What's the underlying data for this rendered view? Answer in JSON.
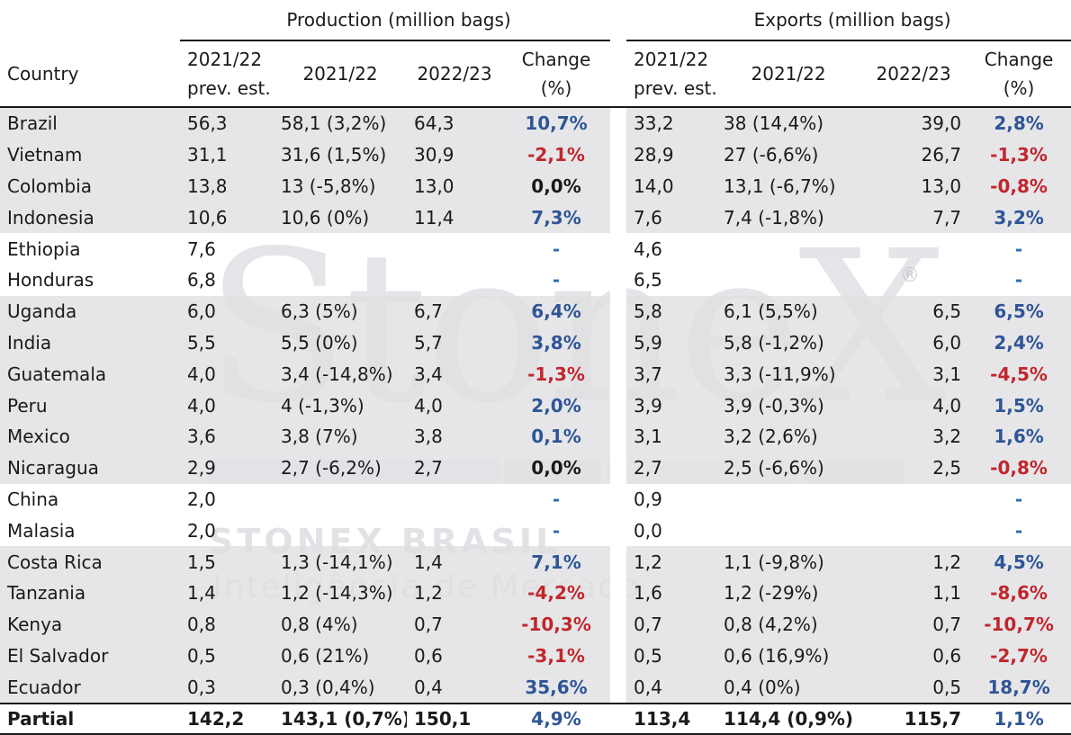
{
  "groups": {
    "production": "Production (million bags)",
    "exports": "Exports (million bags)"
  },
  "headers": {
    "country": "Country",
    "prev_line1": "2021/22",
    "prev_line2": "prev. est.",
    "y2122": "2021/22",
    "y2223": "2022/23",
    "change_line1": "Change",
    "change_line2": "(%)"
  },
  "watermark": {
    "logo": "StoneX",
    "registered": "®",
    "brand": "STONEX BRASIL",
    "tagline": "Inteligência de Mercado"
  },
  "colors": {
    "positive": "#2f5597",
    "negative": "#c0272d",
    "shade": "#e0e0e2"
  },
  "rows": [
    {
      "country": "Brazil",
      "p_prev": "56,3",
      "p_2122": "58,1 (3,2%)",
      "p_2223": "64,3",
      "p_chg": "10,7%",
      "p_sign": "pos",
      "e_prev": "33,2",
      "e_2122": "38 (14,4%)",
      "e_2223": "39,0",
      "e_chg": "2,8%",
      "e_sign": "pos",
      "shade": true
    },
    {
      "country": "Vietnam",
      "p_prev": "31,1",
      "p_2122": "31,6 (1,5%)",
      "p_2223": "30,9",
      "p_chg": "-2,1%",
      "p_sign": "neg",
      "e_prev": "28,9",
      "e_2122": "27 (-6,6%)",
      "e_2223": "26,7",
      "e_chg": "-1,3%",
      "e_sign": "neg",
      "shade": true
    },
    {
      "country": "Colombia",
      "p_prev": "13,8",
      "p_2122": "13 (-5,8%)",
      "p_2223": "13,0",
      "p_chg": "0,0%",
      "p_sign": "zero",
      "e_prev": "14,0",
      "e_2122": "13,1 (-6,7%)",
      "e_2223": "13,0",
      "e_chg": "-0,8%",
      "e_sign": "neg",
      "shade": true
    },
    {
      "country": "Indonesia",
      "p_prev": "10,6",
      "p_2122": "10,6 (0%)",
      "p_2223": "11,4",
      "p_chg": "7,3%",
      "p_sign": "pos",
      "e_prev": "7,6",
      "e_2122": "7,4 (-1,8%)",
      "e_2223": "7,7",
      "e_chg": "3,2%",
      "e_sign": "pos",
      "shade": true
    },
    {
      "country": "Ethiopia",
      "p_prev": "7,6",
      "p_2122": "",
      "p_2223": "",
      "p_chg": "-",
      "p_sign": "dash",
      "e_prev": "4,6",
      "e_2122": "",
      "e_2223": "",
      "e_chg": "-",
      "e_sign": "dash",
      "shade": false
    },
    {
      "country": "Honduras",
      "p_prev": "6,8",
      "p_2122": "",
      "p_2223": "",
      "p_chg": "-",
      "p_sign": "dash",
      "e_prev": "6,5",
      "e_2122": "",
      "e_2223": "",
      "e_chg": "-",
      "e_sign": "dash",
      "shade": false
    },
    {
      "country": "Uganda",
      "p_prev": "6,0",
      "p_2122": "6,3 (5%)",
      "p_2223": "6,7",
      "p_chg": "6,4%",
      "p_sign": "pos",
      "e_prev": "5,8",
      "e_2122": "6,1 (5,5%)",
      "e_2223": "6,5",
      "e_chg": "6,5%",
      "e_sign": "pos",
      "shade": true
    },
    {
      "country": "India",
      "p_prev": "5,5",
      "p_2122": "5,5 (0%)",
      "p_2223": "5,7",
      "p_chg": "3,8%",
      "p_sign": "pos",
      "e_prev": "5,9",
      "e_2122": "5,8 (-1,2%)",
      "e_2223": "6,0",
      "e_chg": "2,4%",
      "e_sign": "pos",
      "shade": true
    },
    {
      "country": "Guatemala",
      "p_prev": "4,0",
      "p_2122": "3,4 (-14,8%)",
      "p_2223": "3,4",
      "p_chg": "-1,3%",
      "p_sign": "neg",
      "e_prev": "3,7",
      "e_2122": "3,3 (-11,9%)",
      "e_2223": "3,1",
      "e_chg": "-4,5%",
      "e_sign": "neg",
      "shade": true
    },
    {
      "country": "Peru",
      "p_prev": "4,0",
      "p_2122": "4 (-1,3%)",
      "p_2223": "4,0",
      "p_chg": "2,0%",
      "p_sign": "pos",
      "e_prev": "3,9",
      "e_2122": "3,9 (-0,3%)",
      "e_2223": "4,0",
      "e_chg": "1,5%",
      "e_sign": "pos",
      "shade": true
    },
    {
      "country": "Mexico",
      "p_prev": "3,6",
      "p_2122": "3,8 (7%)",
      "p_2223": "3,8",
      "p_chg": "0,1%",
      "p_sign": "pos",
      "e_prev": "3,1",
      "e_2122": "3,2 (2,6%)",
      "e_2223": "3,2",
      "e_chg": "1,6%",
      "e_sign": "pos",
      "shade": true
    },
    {
      "country": "Nicaragua",
      "p_prev": "2,9",
      "p_2122": "2,7 (-6,2%)",
      "p_2223": "2,7",
      "p_chg": "0,0%",
      "p_sign": "zero",
      "e_prev": "2,7",
      "e_2122": "2,5 (-6,6%)",
      "e_2223": "2,5",
      "e_chg": "-0,8%",
      "e_sign": "neg",
      "shade": true
    },
    {
      "country": "China",
      "p_prev": "2,0",
      "p_2122": "",
      "p_2223": "",
      "p_chg": "-",
      "p_sign": "dash",
      "e_prev": "0,9",
      "e_2122": "",
      "e_2223": "",
      "e_chg": "-",
      "e_sign": "dash",
      "shade": false
    },
    {
      "country": "Malasia",
      "p_prev": "2,0",
      "p_2122": "",
      "p_2223": "",
      "p_chg": "-",
      "p_sign": "dash",
      "e_prev": "0,0",
      "e_2122": "",
      "e_2223": "",
      "e_chg": "-",
      "e_sign": "dash",
      "shade": false
    },
    {
      "country": "Costa Rica",
      "p_prev": "1,5",
      "p_2122": "1,3 (-14,1%)",
      "p_2223": "1,4",
      "p_chg": "7,1%",
      "p_sign": "pos",
      "e_prev": "1,2",
      "e_2122": "1,1 (-9,8%)",
      "e_2223": "1,2",
      "e_chg": "4,5%",
      "e_sign": "pos",
      "shade": true
    },
    {
      "country": "Tanzania",
      "p_prev": "1,4",
      "p_2122": "1,2 (-14,3%)",
      "p_2223": "1,2",
      "p_chg": "-4,2%",
      "p_sign": "neg",
      "e_prev": "1,6",
      "e_2122": "1,2 (-29%)",
      "e_2223": "1,1",
      "e_chg": "-8,6%",
      "e_sign": "neg",
      "shade": true
    },
    {
      "country": "Kenya",
      "p_prev": "0,8",
      "p_2122": "0,8 (4%)",
      "p_2223": "0,7",
      "p_chg": "-10,3%",
      "p_sign": "neg",
      "e_prev": "0,7",
      "e_2122": "0,8 (4,2%)",
      "e_2223": "0,7",
      "e_chg": "-10,7%",
      "e_sign": "neg",
      "shade": true
    },
    {
      "country": "El Salvador",
      "p_prev": "0,5",
      "p_2122": "0,6 (21%)",
      "p_2223": "0,6",
      "p_chg": "-3,1%",
      "p_sign": "neg",
      "e_prev": "0,5",
      "e_2122": "0,6 (16,9%)",
      "e_2223": "0,6",
      "e_chg": "-2,7%",
      "e_sign": "neg",
      "shade": true
    },
    {
      "country": "Ecuador",
      "p_prev": "0,3",
      "p_2122": "0,3 (0,4%)",
      "p_2223": "0,4",
      "p_chg": "35,6%",
      "p_sign": "pos",
      "e_prev": "0,4",
      "e_2122": "0,4 (0%)",
      "e_2223": "0,5",
      "e_chg": "18,7%",
      "e_sign": "pos",
      "shade": true
    }
  ],
  "total": {
    "country": "Partial",
    "p_prev": "142,2",
    "p_2122": "143,1 (0,7%)",
    "p_2223": "150,1",
    "p_chg": "4,9%",
    "e_prev": "113,4",
    "e_2122": "114,4 (0,9%)",
    "e_2223": "115,7",
    "e_chg": "1,1%"
  }
}
